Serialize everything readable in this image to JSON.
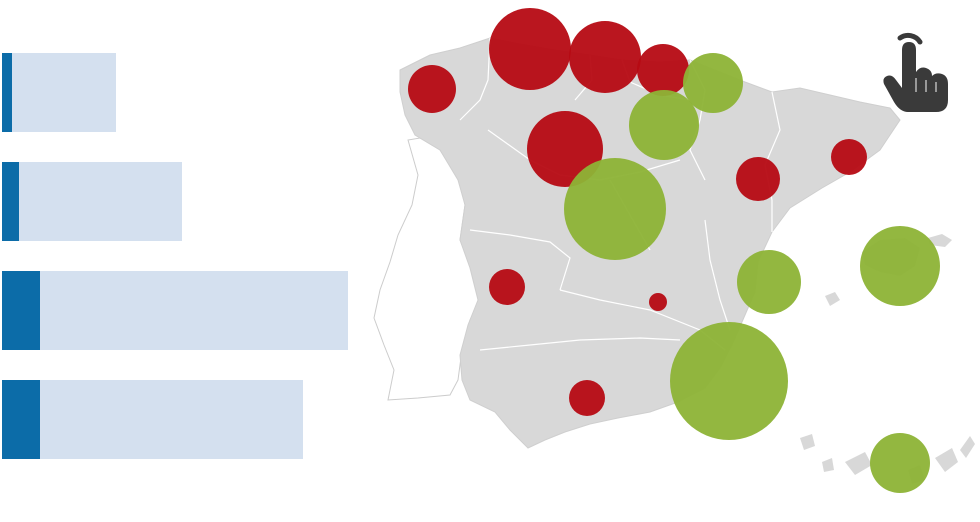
{
  "colors": {
    "land": "#d8d8d8",
    "border": "#ffffff",
    "outline": "#c8c8c8",
    "bubble_red": "#b60a13",
    "bubble_green": "#8db336",
    "bar_track": "#d4e0ef",
    "bar_fill": "#0c6ca8",
    "icon": "#3a3a3a"
  },
  "icons": {
    "interaction": "pointer-hand-icon"
  },
  "bars": [
    {
      "total": 0.33,
      "filled": 0.03
    },
    {
      "total": 0.52,
      "filled": 0.05
    },
    {
      "total": 1.0,
      "filled": 0.11
    },
    {
      "total": 0.87,
      "filled": 0.11
    }
  ],
  "bubbles": [
    {
      "region": "galicia",
      "category": "red",
      "size": 0.4
    },
    {
      "region": "asturias",
      "category": "red",
      "size": 0.7
    },
    {
      "region": "cantabria",
      "category": "red",
      "size": 0.61
    },
    {
      "region": "pais-vasco",
      "category": "red",
      "size": 0.44
    },
    {
      "region": "navarra",
      "category": "green",
      "size": 0.5
    },
    {
      "region": "la-rioja",
      "category": "green",
      "size": 0.6
    },
    {
      "region": "castilla-y-leon",
      "category": "red",
      "size": 0.65
    },
    {
      "region": "madrid",
      "category": "green",
      "size": 0.87
    },
    {
      "region": "aragon",
      "category": "red",
      "size": 0.38
    },
    {
      "region": "cataluna",
      "category": "red",
      "size": 0.3
    },
    {
      "region": "extremadura",
      "category": "red",
      "size": 0.3
    },
    {
      "region": "castilla-la-mancha",
      "category": "red",
      "size": 0.15
    },
    {
      "region": "comunidad-valenciana",
      "category": "green",
      "size": 0.55
    },
    {
      "region": "baleares",
      "category": "green",
      "size": 0.67
    },
    {
      "region": "murcia",
      "category": "green",
      "size": 1.0
    },
    {
      "region": "andalucia",
      "category": "red",
      "size": 0.3
    },
    {
      "region": "canarias",
      "category": "green",
      "size": 0.5
    }
  ]
}
